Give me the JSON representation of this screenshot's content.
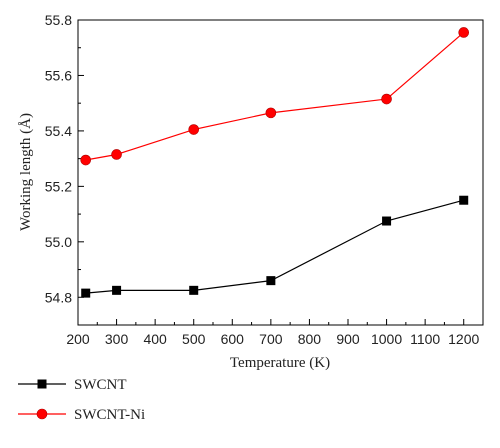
{
  "chart_data": {
    "type": "line",
    "title": "",
    "xlabel": "Temperature (K)",
    "ylabel": "Working length (Å)",
    "xlim": [
      200,
      1250
    ],
    "ylim": [
      54.7,
      55.8
    ],
    "xticks": [
      200,
      300,
      400,
      500,
      600,
      700,
      800,
      900,
      1000,
      1100,
      1200
    ],
    "yticks": [
      54.8,
      55.0,
      55.2,
      55.4,
      55.6,
      55.8
    ],
    "x": [
      220,
      300,
      500,
      700,
      1000,
      1200
    ],
    "grid": false,
    "legend_position": "bottom-left, below plot",
    "series": [
      {
        "name": "SWCNT",
        "color": "#000000",
        "marker": "square",
        "values": [
          54.815,
          54.825,
          54.825,
          54.86,
          55.075,
          55.15
        ]
      },
      {
        "name": "SWCNT-Ni",
        "color": "#ff0000",
        "marker": "circle",
        "values": [
          55.295,
          55.315,
          55.405,
          55.465,
          55.515,
          55.755
        ]
      }
    ]
  }
}
